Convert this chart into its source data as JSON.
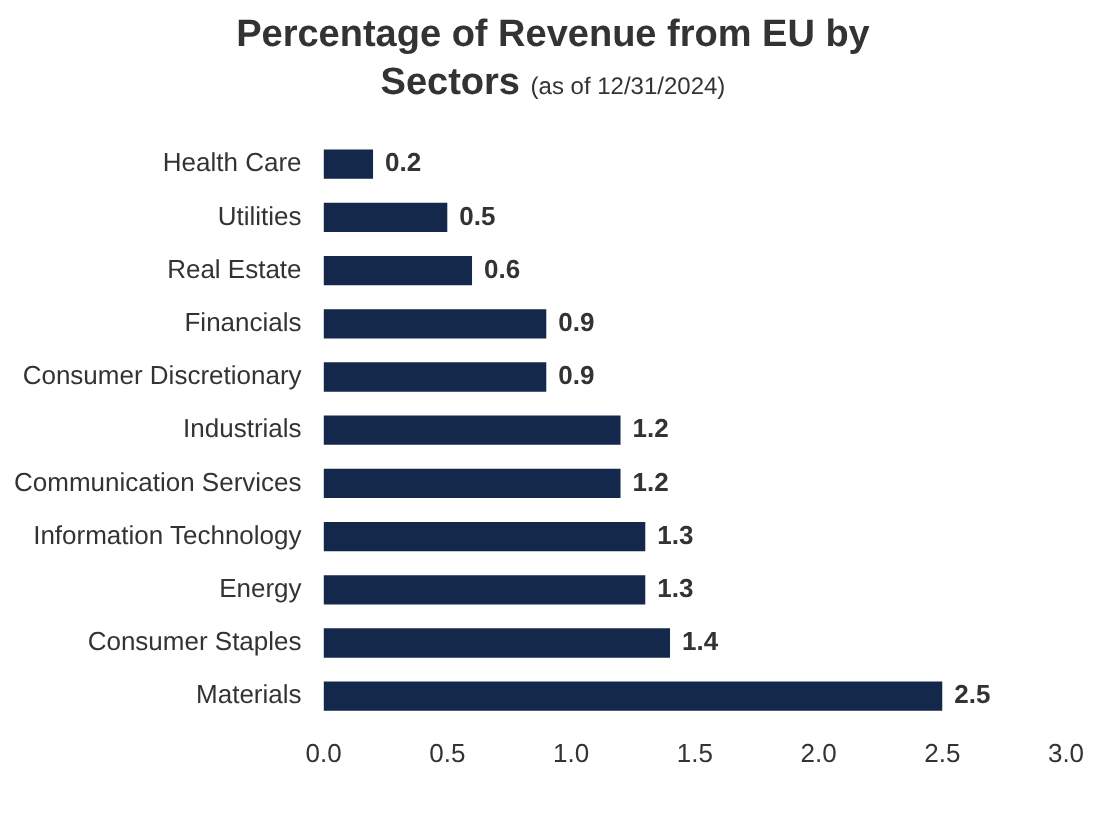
{
  "chart_data": {
    "type": "bar",
    "orientation": "horizontal",
    "title": "Percentage of Revenue from EU by Sectors",
    "subtitle": "(as of 12/31/2024)",
    "categories": [
      "Health Care",
      "Utilities",
      "Real Estate",
      "Financials",
      "Consumer Discretionary",
      "Industrials",
      "Communication Services",
      "Information Technology",
      "Energy",
      "Consumer Staples",
      "Materials"
    ],
    "values": [
      0.2,
      0.5,
      0.6,
      0.9,
      0.9,
      1.2,
      1.2,
      1.3,
      1.3,
      1.4,
      2.5
    ],
    "color": "#14284b",
    "xlim": [
      0,
      3
    ],
    "xticks": [
      {
        "value": 0,
        "label": "0.0"
      },
      {
        "value": 0.5,
        "label": "0.5"
      },
      {
        "value": 1,
        "label": "1.0"
      },
      {
        "value": 1.5,
        "label": "1.5"
      },
      {
        "value": 2,
        "label": "2.0"
      },
      {
        "value": 2.5,
        "label": "2.5"
      },
      {
        "value": 3,
        "label": "3.0"
      }
    ],
    "data_labels": true,
    "grid": false,
    "legend": false
  }
}
